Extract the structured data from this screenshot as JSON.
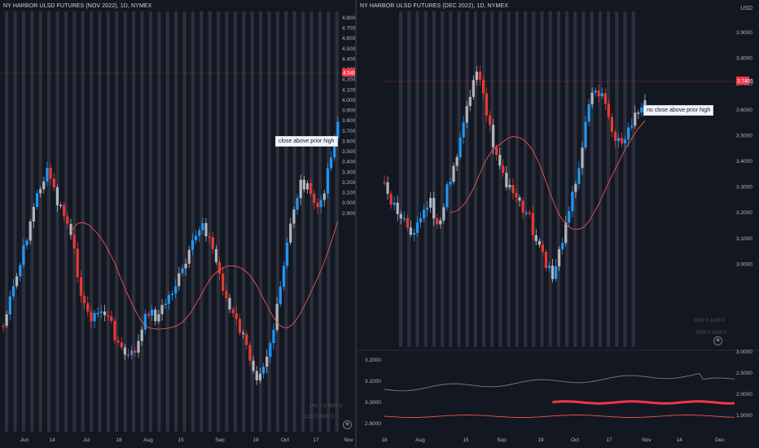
{
  "left_chart": {
    "title": "NY HARBOR ULSD FUTURES (NOV 2022), 1D, NYMEX",
    "price_ticks": [
      "4.8000",
      "4.7000",
      "4.6000",
      "4.5000",
      "4.4000",
      "4.3000",
      "4.2000",
      "4.1000",
      "4.0000",
      "3.9000",
      "3.8000",
      "3.7000",
      "3.6000",
      "3.5000",
      "3.4000",
      "3.3000",
      "3.2000",
      "3.1000",
      "3.0000",
      "2.9000"
    ],
    "date_labels": [
      "Jun",
      "14",
      "Jul",
      "18",
      "Aug",
      "15",
      "Sep",
      "19",
      "Oct",
      "17",
      "Nov"
    ],
    "last_price": "4.5490",
    "annotation": "close above prior high",
    "indicator_values": [
      "140.7   0.7543   0",
      "1125   0.3432   0"
    ],
    "eye_icon": "eye-icon"
  },
  "right_chart": {
    "title": "NY HARBOR ULSD FUTURES (DEC 2022), 1D, NYMEX",
    "currency": "USD",
    "price_ticks": [
      "3.9000",
      "3.8000",
      "3.7000",
      "3.6000",
      "3.5000",
      "3.4000",
      "3.3000",
      "3.2000",
      "3.1000",
      "3.0000"
    ],
    "last_price": "3.7405",
    "annotation": "no close above prior high",
    "indicator_values": [
      "5502   0.1143   0",
      "3309   0.3000   0"
    ],
    "lower_right_ticks": [
      "3.0000",
      "2.5000",
      "2.0000",
      "1.5000"
    ],
    "lower_left_ticks": [
      "3.2000",
      "3.1000",
      "3.0000",
      "2.9000"
    ],
    "date_labels": [
      "18",
      "Aug",
      "15",
      "Sep",
      "19",
      "Oct",
      "17",
      "Nov",
      "14",
      "Dec"
    ],
    "eye_icon": "eye-icon"
  },
  "colors": {
    "background": "#131722",
    "up_blue": "#2196f3",
    "down_red": "#e53935",
    "neutral_gray": "#b2b5be",
    "orange": "#f57c00",
    "ma_line": "#ef5350",
    "price_line": "#f23645"
  }
}
